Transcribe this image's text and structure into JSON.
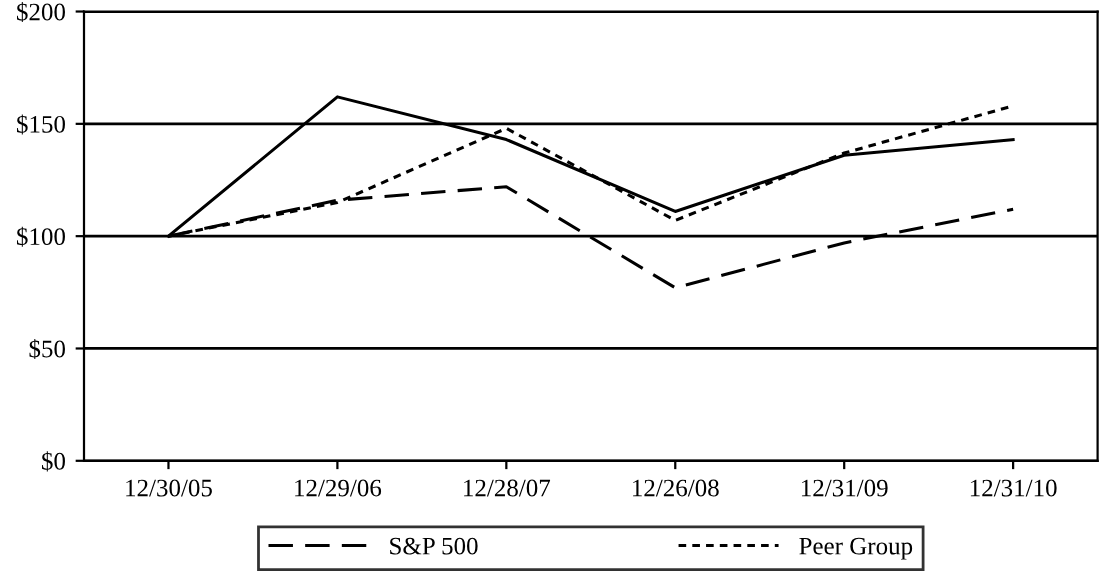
{
  "chart_data": {
    "type": "line",
    "categories": [
      "12/30/05",
      "12/29/06",
      "12/28/07",
      "12/26/08",
      "12/31/09",
      "12/31/10"
    ],
    "series": [
      {
        "color": "#000000",
        "line_style": "solid",
        "values": [
          100,
          162,
          143,
          111,
          136,
          143
        ]
      },
      {
        "name": "S&P 500",
        "color": "#000000",
        "line_style": "dashed",
        "values": [
          100,
          116,
          122,
          77,
          97,
          112
        ]
      },
      {
        "name": "Peer Group",
        "color": "#000000",
        "line_style": "dotted",
        "values": [
          100,
          115,
          148,
          107,
          137,
          158
        ]
      }
    ],
    "ylim": [
      0,
      200
    ],
    "yticks": [
      {
        "value": 0,
        "label": "$0"
      },
      {
        "value": 50,
        "label": "$50"
      },
      {
        "value": 100,
        "label": "$100"
      },
      {
        "value": 150,
        "label": "$150"
      },
      {
        "value": 200,
        "label": "$200"
      }
    ],
    "grid": "y",
    "legend": "bottom",
    "marker": "none"
  }
}
